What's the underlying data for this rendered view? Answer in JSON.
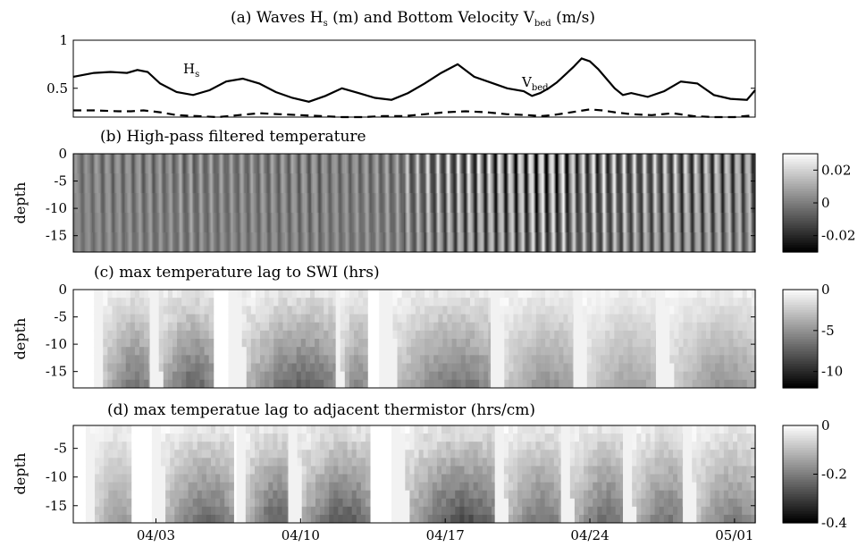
{
  "chart_data": [
    {
      "id": "a",
      "type": "line",
      "title": "(a) Waves H",
      "title_sub": "s",
      "title_mid": " (m) and Bottom Velocity V",
      "title_sub2": "bed",
      "title_end": " (m/s)",
      "xlim": [
        0,
        33
      ],
      "ylim": [
        0.2,
        1.0
      ],
      "yticks": [
        {
          "v": 1,
          "label": "1"
        },
        {
          "v": 0.5,
          "label": "0.5"
        }
      ],
      "series": [
        {
          "name": "H",
          "name_sub": "s",
          "x": [
            0,
            1,
            1.8,
            2.6,
            3.1,
            3.6,
            4.2,
            5.0,
            5.8,
            6.6,
            7.4,
            8.2,
            9.0,
            9.8,
            10.6,
            11.4,
            12.2,
            13.0,
            13.8,
            14.6,
            15.4,
            16.2,
            17.0,
            17.8,
            18.6,
            19.4,
            20.2,
            21.0,
            21.8,
            22.2,
            22.6,
            23.0,
            23.4,
            23.8,
            24.2,
            24.6,
            25.0,
            25.4,
            25.8,
            26.2,
            26.6,
            27.0,
            27.8,
            28.6,
            29.4,
            30.2,
            31.0,
            31.8,
            32.6,
            33
          ],
          "y": [
            0.62,
            0.66,
            0.67,
            0.66,
            0.69,
            0.67,
            0.55,
            0.46,
            0.43,
            0.48,
            0.57,
            0.6,
            0.55,
            0.46,
            0.4,
            0.36,
            0.42,
            0.5,
            0.45,
            0.4,
            0.38,
            0.45,
            0.55,
            0.66,
            0.75,
            0.62,
            0.56,
            0.5,
            0.47,
            0.42,
            0.45,
            0.5,
            0.56,
            0.64,
            0.72,
            0.81,
            0.78,
            0.7,
            0.6,
            0.5,
            0.43,
            0.45,
            0.41,
            0.47,
            0.57,
            0.55,
            0.43,
            0.39,
            0.38,
            0.48
          ],
          "style": "solid"
        },
        {
          "name": "V",
          "name_sub": "bed",
          "x": [
            0,
            1,
            2.2,
            2.8,
            3.4,
            4.2,
            5.0,
            6.0,
            7.0,
            8.0,
            9.0,
            10.0,
            11.0,
            12.0,
            13.0,
            14.0,
            15.0,
            16.0,
            17.0,
            18.0,
            19.0,
            20.0,
            21.0,
            22.0,
            22.6,
            23.2,
            23.8,
            24.4,
            25.0,
            25.6,
            26.2,
            27.0,
            28.0,
            29.0,
            30.0,
            31.0,
            32.0,
            33
          ],
          "y": [
            0.27,
            0.27,
            0.26,
            0.26,
            0.27,
            0.25,
            0.22,
            0.21,
            0.2,
            0.22,
            0.24,
            0.23,
            0.22,
            0.21,
            0.2,
            0.2,
            0.21,
            0.21,
            0.23,
            0.25,
            0.26,
            0.25,
            0.23,
            0.22,
            0.21,
            0.22,
            0.24,
            0.26,
            0.28,
            0.27,
            0.25,
            0.23,
            0.22,
            0.24,
            0.21,
            0.2,
            0.2,
            0.22
          ],
          "style": "dashed"
        }
      ]
    },
    {
      "id": "b",
      "type": "heatmap",
      "title": "(b) High-pass filtered temperature",
      "ylabel": "depth",
      "ylim": [
        -18,
        0
      ],
      "yticks": [
        {
          "v": 0,
          "label": "0"
        },
        {
          "v": -5,
          "label": "-5"
        },
        {
          "v": -10,
          "label": "-10"
        },
        {
          "v": -15,
          "label": "-15"
        }
      ],
      "clim": [
        -0.03,
        0.03
      ],
      "colorbar_ticks": [
        {
          "v": 0.02,
          "label": "0.02"
        },
        {
          "v": 0,
          "label": "0"
        },
        {
          "v": -0.02,
          "label": "-0.02"
        }
      ],
      "amplitude_by_day": [
        0.006,
        0.008,
        0.008,
        0.009,
        0.008,
        0.01,
        0.009,
        0.008,
        0.008,
        0.009,
        0.009,
        0.01,
        0.008,
        0.008,
        0.009,
        0.01,
        0.016,
        0.02,
        0.022,
        0.024,
        0.025,
        0.026,
        0.03,
        0.028,
        0.022,
        0.024,
        0.022,
        0.02,
        0.02,
        0.021,
        0.02,
        0.02,
        0.018,
        0.018
      ]
    },
    {
      "id": "c",
      "type": "heatmap",
      "title": "(c) max temperature lag to SWI (hrs)",
      "ylabel": "depth",
      "ylim": [
        -18,
        0
      ],
      "yticks": [
        {
          "v": 0,
          "label": "0"
        },
        {
          "v": -5,
          "label": "-5"
        },
        {
          "v": -10,
          "label": "-10"
        },
        {
          "v": -15,
          "label": "-15"
        }
      ],
      "clim": [
        -12,
        0
      ],
      "colorbar_ticks": [
        {
          "v": 0,
          "label": "0"
        },
        {
          "v": -5,
          "label": "-5"
        },
        {
          "v": -10,
          "label": "-10"
        }
      ],
      "cycles": [
        {
          "start": 1.0,
          "end": 3.7,
          "amp": 9,
          "seed": 1
        },
        {
          "start": 3.7,
          "end": 6.7,
          "amp": 10,
          "seed": 2
        },
        {
          "start": 7.5,
          "end": 12.7,
          "amp": 10,
          "seed": 3
        },
        {
          "start": 12.7,
          "end": 14.2,
          "amp": 8,
          "seed": 4
        },
        {
          "start": 14.8,
          "end": 20.2,
          "amp": 9,
          "seed": 5
        },
        {
          "start": 20.2,
          "end": 24.2,
          "amp": 7,
          "seed": 6
        },
        {
          "start": 24.2,
          "end": 28.2,
          "amp": 6,
          "seed": 7
        },
        {
          "start": 28.2,
          "end": 33.0,
          "amp": 7,
          "seed": 8
        }
      ]
    },
    {
      "id": "d",
      "type": "heatmap",
      "title": "(d) max temperatue lag to adjacent thermistor (hrs/cm)",
      "ylabel": "depth",
      "ylim": [
        -18,
        -1
      ],
      "yticks": [
        {
          "v": -5,
          "label": "-5"
        },
        {
          "v": -10,
          "label": "-10"
        },
        {
          "v": -15,
          "label": "-15"
        }
      ],
      "clim": [
        -0.4,
        0
      ],
      "colorbar_ticks": [
        {
          "v": 0,
          "label": "0"
        },
        {
          "v": -0.2,
          "label": "-0.2"
        },
        {
          "v": -0.4,
          "label": "-0.4"
        }
      ],
      "xlim": [
        0,
        33
      ],
      "xticks": [
        {
          "v": 4,
          "label": "04/03"
        },
        {
          "v": 11,
          "label": "04/10"
        },
        {
          "v": 18,
          "label": "04/17"
        },
        {
          "v": 25,
          "label": "04/24"
        },
        {
          "v": 32,
          "label": "05/01"
        }
      ],
      "cycles": [
        {
          "start": 0.6,
          "end": 2.8,
          "amp": 0.22,
          "seed": 11
        },
        {
          "start": 3.8,
          "end": 7.6,
          "amp": 0.32,
          "seed": 12
        },
        {
          "start": 7.9,
          "end": 10.6,
          "amp": 0.34,
          "seed": 13
        },
        {
          "start": 10.4,
          "end": 14.2,
          "amp": 0.36,
          "seed": 14
        },
        {
          "start": 15.4,
          "end": 20.4,
          "amp": 0.38,
          "seed": 15
        },
        {
          "start": 20.4,
          "end": 23.6,
          "amp": 0.3,
          "seed": 16
        },
        {
          "start": 23.6,
          "end": 26.8,
          "amp": 0.32,
          "seed": 17
        },
        {
          "start": 26.6,
          "end": 29.6,
          "amp": 0.3,
          "seed": 18
        },
        {
          "start": 29.5,
          "end": 32.9,
          "amp": 0.28,
          "seed": 19
        }
      ]
    }
  ]
}
